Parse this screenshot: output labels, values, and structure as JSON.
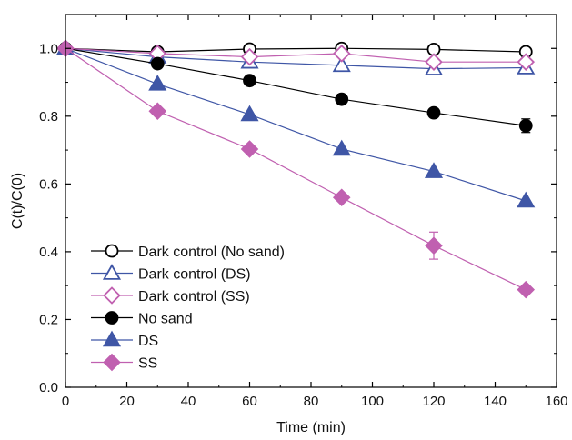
{
  "chart_data": {
    "type": "line",
    "title": "",
    "xlabel": "Time (min)",
    "ylabel": "C(t)/C(0)",
    "xlim": [
      0,
      160
    ],
    "ylim": [
      0.0,
      1.1
    ],
    "xticks": [
      "0",
      "20",
      "40",
      "60",
      "80",
      "100",
      "120",
      "140",
      "160"
    ],
    "yticks": [
      "0.0",
      "0.2",
      "0.4",
      "0.6",
      "0.8",
      "1.0"
    ],
    "grid": false,
    "legend_position": "bottom-left",
    "x": [
      0,
      30,
      60,
      90,
      120,
      150
    ],
    "series": [
      {
        "name": "Dark control (No sand)",
        "marker": "circle",
        "filled": false,
        "color": "#000000",
        "values": [
          1.0,
          0.99,
          0.998,
          1.0,
          0.997,
          0.99
        ],
        "errors": [
          0,
          0,
          0,
          0,
          0,
          0
        ]
      },
      {
        "name": "Dark control (DS)",
        "marker": "triangle",
        "filled": false,
        "color": "#3f56a6",
        "values": [
          1.0,
          0.975,
          0.96,
          0.95,
          0.94,
          0.943
        ],
        "errors": [
          0,
          0,
          0,
          0,
          0,
          0
        ]
      },
      {
        "name": "Dark control (SS)",
        "marker": "diamond",
        "filled": false,
        "color": "#c060b0",
        "values": [
          1.0,
          0.985,
          0.975,
          0.985,
          0.96,
          0.96
        ],
        "errors": [
          0,
          0,
          0,
          0,
          0,
          0
        ]
      },
      {
        "name": "No sand",
        "marker": "circle",
        "filled": true,
        "color": "#000000",
        "values": [
          1.0,
          0.955,
          0.905,
          0.85,
          0.81,
          0.772
        ],
        "errors": [
          0,
          0,
          0,
          0.015,
          0,
          0.02
        ]
      },
      {
        "name": "DS",
        "marker": "triangle",
        "filled": true,
        "color": "#3f56a6",
        "values": [
          1.0,
          0.895,
          0.805,
          0.703,
          0.637,
          0.55
        ],
        "errors": [
          0,
          0,
          0,
          0,
          0,
          0
        ]
      },
      {
        "name": "SS",
        "marker": "diamond",
        "filled": true,
        "color": "#c060b0",
        "values": [
          1.0,
          0.815,
          0.703,
          0.56,
          0.418,
          0.288
        ],
        "errors": [
          0,
          0,
          0,
          0,
          0.04,
          0
        ]
      }
    ]
  }
}
